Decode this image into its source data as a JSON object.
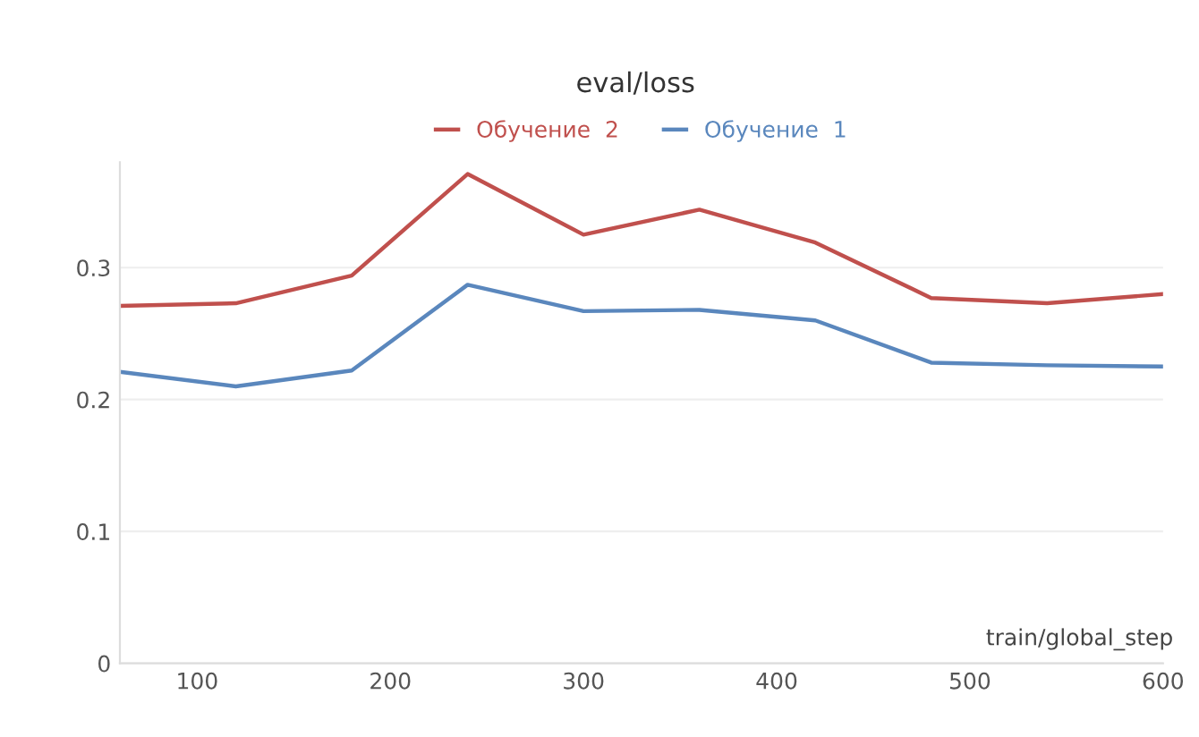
{
  "chart_data": {
    "type": "line",
    "title": "eval/loss",
    "xlabel": "train/global_step",
    "x": [
      60,
      120,
      180,
      240,
      300,
      360,
      420,
      480,
      540,
      600
    ],
    "series": [
      {
        "name": "Обучение  2",
        "color": "#c0504d",
        "values": [
          0.271,
          0.273,
          0.294,
          0.371,
          0.325,
          0.344,
          0.319,
          0.277,
          0.273,
          0.28
        ]
      },
      {
        "name": "Обучение  1",
        "color": "#5a87bd",
        "values": [
          0.221,
          0.21,
          0.222,
          0.287,
          0.267,
          0.268,
          0.26,
          0.228,
          0.226,
          0.225
        ]
      }
    ],
    "xlim": [
      60,
      600
    ],
    "ylim": [
      0,
      0.38
    ],
    "xticks": [
      100,
      200,
      300,
      400,
      500,
      600
    ],
    "yticks": [
      0,
      0.1,
      0.2,
      0.3
    ],
    "grid": "y",
    "legend": "top",
    "line_style": "solid"
  }
}
